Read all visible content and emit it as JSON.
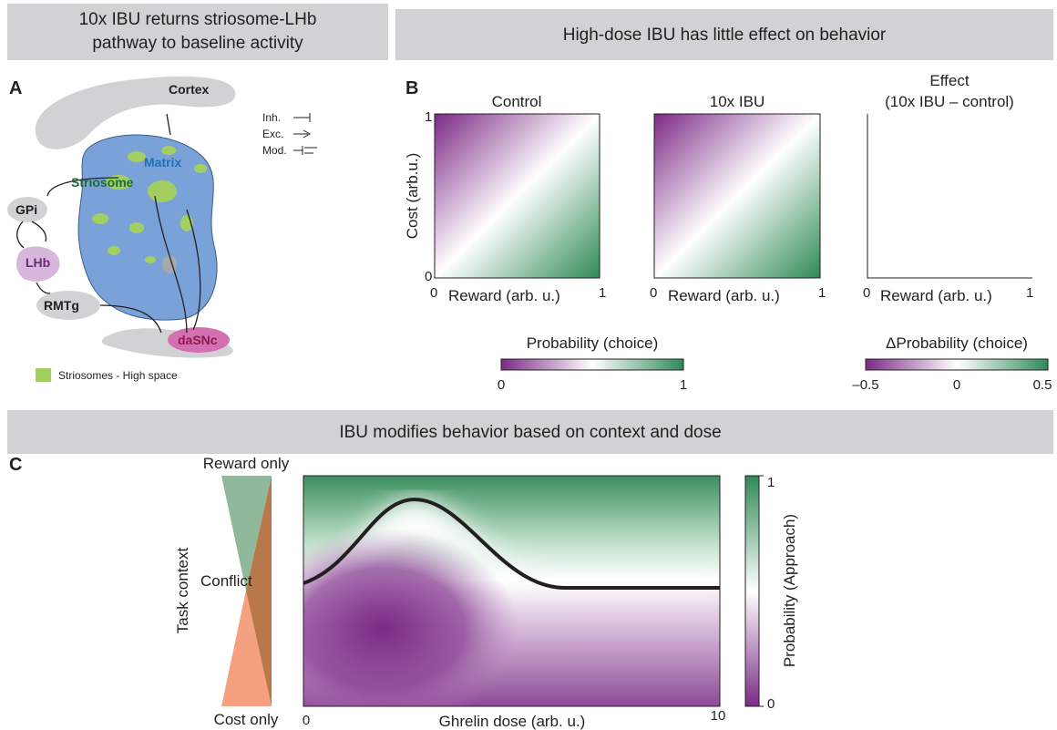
{
  "header_a": {
    "lines": [
      "10x IBU returns striosome-LHb",
      "pathway to baseline activity"
    ]
  },
  "header_b": {
    "title": "High-dose IBU has little effect on behavior"
  },
  "header_c": {
    "title": "IBU modifies behavior based on context and dose"
  },
  "panel_a": {
    "label": "A",
    "nodes": {
      "cortex": "Cortex",
      "matrix": "Matrix",
      "striosome": "Striosome",
      "gpi": "GPi",
      "lhb": "LHb",
      "rmtg": "RMTg",
      "dasnc": "daSNc"
    },
    "key": {
      "inh": "Inh.",
      "exc": "Exc.",
      "mod": "Mod."
    },
    "legend": "Striosomes - High space"
  },
  "panel_b": {
    "label": "B",
    "y_axis": "Cost (arb.u.)",
    "y_ticks": [
      "1",
      "0"
    ],
    "maps": [
      {
        "title": [
          "Control"
        ],
        "x_axis": "Reward (arb. u.)",
        "x_ticks": [
          "0",
          "1"
        ]
      },
      {
        "title": [
          "10x IBU"
        ],
        "x_axis": "Reward (arb. u.)",
        "x_ticks": [
          "0",
          "1"
        ]
      },
      {
        "title": [
          "Effect",
          "(10x IBU – control)"
        ],
        "x_axis": "Reward (arb. u.)",
        "x_ticks": [
          "0",
          "1"
        ]
      }
    ],
    "colorbars": [
      {
        "label": "Probability (choice)",
        "ticks": [
          "0",
          "1"
        ]
      },
      {
        "label": "ΔProbability (choice)",
        "ticks": [
          "–0.5",
          "0",
          "0.5"
        ]
      }
    ]
  },
  "panel_c": {
    "label": "C",
    "context": {
      "top": "Reward only",
      "middle": "Conflict",
      "bottom": "Cost only",
      "axis": "Task context"
    },
    "x_axis": "Ghrelin dose (arb. u.)",
    "x_ticks": [
      "0",
      "10"
    ],
    "colorbar": {
      "label": "Probability (Approach)",
      "ticks": [
        "1",
        "0"
      ]
    }
  }
}
